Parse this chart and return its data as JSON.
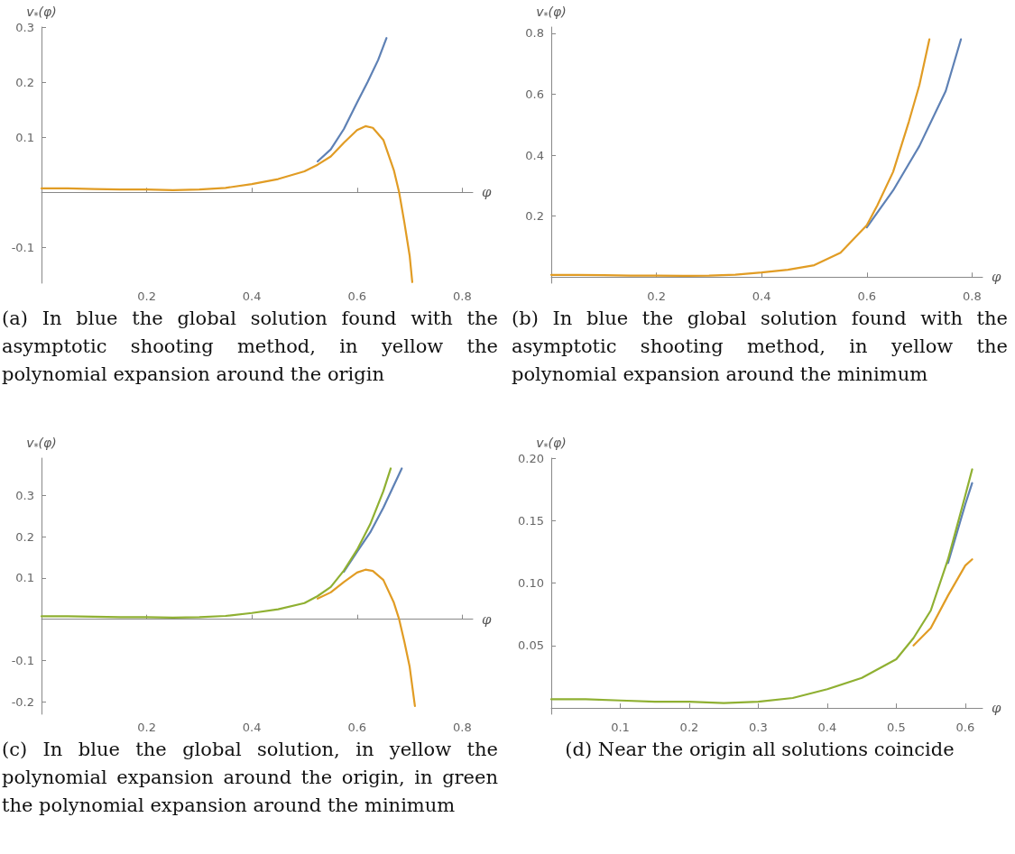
{
  "chart_data": [
    {
      "type": "line",
      "xlabel": "φ",
      "ylabel": "v$_{*}$(φ)",
      "xlim": [
        0,
        0.82
      ],
      "ylim": [
        -0.165,
        0.3
      ],
      "xticks": [
        0.2,
        0.4,
        0.6,
        0.8
      ],
      "yticks": [
        -0.1,
        0.1,
        0.2,
        0.3
      ],
      "series": [
        {
          "color": "#5e81b5",
          "x": [
            0.525,
            0.55,
            0.575,
            0.6,
            0.62,
            0.64,
            0.656
          ],
          "values": [
            0.056,
            0.078,
            0.115,
            0.163,
            0.2,
            0.24,
            0.28
          ]
        },
        {
          "color": "#e19c24",
          "x": [
            0,
            0.05,
            0.1,
            0.15,
            0.2,
            0.25,
            0.3,
            0.35,
            0.4,
            0.45,
            0.5,
            0.525,
            0.55,
            0.575,
            0.6,
            0.616,
            0.63,
            0.65,
            0.67,
            0.68,
            0.69,
            0.7,
            0.705
          ],
          "values": [
            0.007,
            0.007,
            0.006,
            0.005,
            0.005,
            0.004,
            0.005,
            0.008,
            0.015,
            0.024,
            0.038,
            0.05,
            0.065,
            0.09,
            0.113,
            0.12,
            0.117,
            0.095,
            0.04,
            0,
            -0.055,
            -0.115,
            -0.163
          ]
        }
      ],
      "annotations": [
        "(a) In blue the global solution found with the asymptotic shooting method, in yellow the polynomial expansion around the origin"
      ]
    },
    {
      "type": "line",
      "xlabel": "φ",
      "ylabel": "v$_{*}$(φ)",
      "xlim": [
        0,
        0.82
      ],
      "ylim": [
        -0.02,
        0.82
      ],
      "xticks": [
        0.2,
        0.4,
        0.6,
        0.8
      ],
      "yticks": [
        0.2,
        0.4,
        0.6,
        0.8
      ],
      "series": [
        {
          "color": "#5e81b5",
          "x": [
            0.6,
            0.65,
            0.7,
            0.75,
            0.779
          ],
          "values": [
            0.163,
            0.284,
            0.43,
            0.61,
            0.78
          ]
        },
        {
          "color": "#e19c24",
          "x": [
            0,
            0.05,
            0.1,
            0.15,
            0.2,
            0.25,
            0.3,
            0.35,
            0.4,
            0.45,
            0.5,
            0.55,
            0.6,
            0.62,
            0.65,
            0.68,
            0.7,
            0.719
          ],
          "values": [
            0.007,
            0.007,
            0.006,
            0.005,
            0.005,
            0.004,
            0.005,
            0.008,
            0.015,
            0.024,
            0.039,
            0.08,
            0.17,
            0.235,
            0.345,
            0.51,
            0.63,
            0.78
          ]
        }
      ],
      "annotations": [
        "(b) In blue the global solution found with the asymptotic shooting method, in yellow the polynomial expansion around the minimum"
      ]
    },
    {
      "type": "line",
      "xlabel": "φ",
      "ylabel": "v$_{*}$(φ)",
      "xlim": [
        0,
        0.82
      ],
      "ylim": [
        -0.23,
        0.39
      ],
      "xticks": [
        0.2,
        0.4,
        0.6,
        0.8
      ],
      "yticks": [
        -0.2,
        -0.1,
        0.1,
        0.2,
        0.3
      ],
      "series": [
        {
          "color": "#5e81b5",
          "x": [
            0.575,
            0.6,
            0.625,
            0.65,
            0.685
          ],
          "values": [
            0.115,
            0.163,
            0.21,
            0.27,
            0.365
          ]
        },
        {
          "color": "#e19c24",
          "x": [
            0.525,
            0.55,
            0.575,
            0.6,
            0.616,
            0.63,
            0.65,
            0.67,
            0.68,
            0.69,
            0.7,
            0.71
          ],
          "values": [
            0.05,
            0.065,
            0.09,
            0.113,
            0.12,
            0.117,
            0.095,
            0.04,
            0,
            -0.055,
            -0.115,
            -0.21
          ]
        },
        {
          "color": "#8fb032",
          "x": [
            0,
            0.05,
            0.1,
            0.15,
            0.2,
            0.25,
            0.3,
            0.35,
            0.4,
            0.45,
            0.5,
            0.525,
            0.55,
            0.575,
            0.6,
            0.625,
            0.65,
            0.664
          ],
          "values": [
            0.007,
            0.007,
            0.006,
            0.005,
            0.005,
            0.004,
            0.005,
            0.008,
            0.015,
            0.024,
            0.039,
            0.056,
            0.078,
            0.118,
            0.168,
            0.23,
            0.31,
            0.365
          ]
        }
      ],
      "annotations": [
        "(c) In blue the global solution, in yellow the polynomial expansion around the origin, in green the polynomial expansion around the minimum"
      ]
    },
    {
      "type": "line",
      "xlabel": "φ",
      "ylabel": "v$_{*}$(φ)",
      "xlim": [
        0,
        0.625
      ],
      "ylim": [
        -0.005,
        0.2
      ],
      "xticks": [
        0.1,
        0.2,
        0.3,
        0.4,
        0.5,
        0.6
      ],
      "yticks": [
        {
          "value": 0.05,
          "label": "0.05"
        },
        {
          "value": 0.1,
          "label": "0.10"
        },
        {
          "value": 0.15,
          "label": "0.15"
        },
        {
          "value": 0.2,
          "label": "0.20"
        }
      ],
      "series": [
        {
          "color": "#5e81b5",
          "x": [
            0.575,
            0.6,
            0.61
          ],
          "values": [
            0.116,
            0.163,
            0.18
          ]
        },
        {
          "color": "#e19c24",
          "x": [
            0.525,
            0.55,
            0.575,
            0.6,
            0.61
          ],
          "values": [
            0.05,
            0.064,
            0.09,
            0.114,
            0.119
          ]
        },
        {
          "color": "#8fb032",
          "x": [
            0,
            0.05,
            0.1,
            0.15,
            0.2,
            0.25,
            0.3,
            0.35,
            0.4,
            0.45,
            0.5,
            0.525,
            0.55,
            0.575,
            0.6,
            0.61
          ],
          "values": [
            0.007,
            0.007,
            0.006,
            0.005,
            0.005,
            0.004,
            0.005,
            0.008,
            0.015,
            0.024,
            0.039,
            0.056,
            0.078,
            0.119,
            0.17,
            0.191
          ]
        }
      ],
      "annotations": [
        "(d) Near the origin all solutions coincide"
      ]
    }
  ]
}
